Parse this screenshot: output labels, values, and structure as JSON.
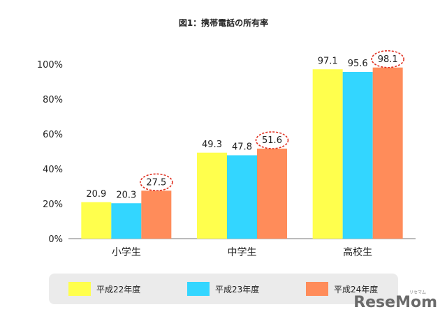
{
  "chart_data": {
    "type": "bar",
    "title": "図1：携帯電話の所有率",
    "categories": [
      "小学生",
      "中学生",
      "高校生"
    ],
    "series": [
      {
        "name": "平成22年度",
        "values": [
          20.9,
          49.3,
          97.1
        ],
        "color": "#ffff4d"
      },
      {
        "name": "平成23年度",
        "values": [
          20.3,
          47.8,
          95.6
        ],
        "color": "#33d6ff"
      },
      {
        "name": "平成24年度",
        "values": [
          27.5,
          51.6,
          98.1
        ],
        "color": "#ff8c5a"
      }
    ],
    "ylim": [
      0,
      100
    ],
    "yticks": [
      "0%",
      "20%",
      "40%",
      "60%",
      "80%",
      "100%"
    ],
    "legend_position": "bottom",
    "highlight_series": "平成24年度",
    "highlight_color": "#e03020",
    "gridlines": false
  },
  "watermark": {
    "main": "ReseMom",
    "sub": "リセマム"
  }
}
